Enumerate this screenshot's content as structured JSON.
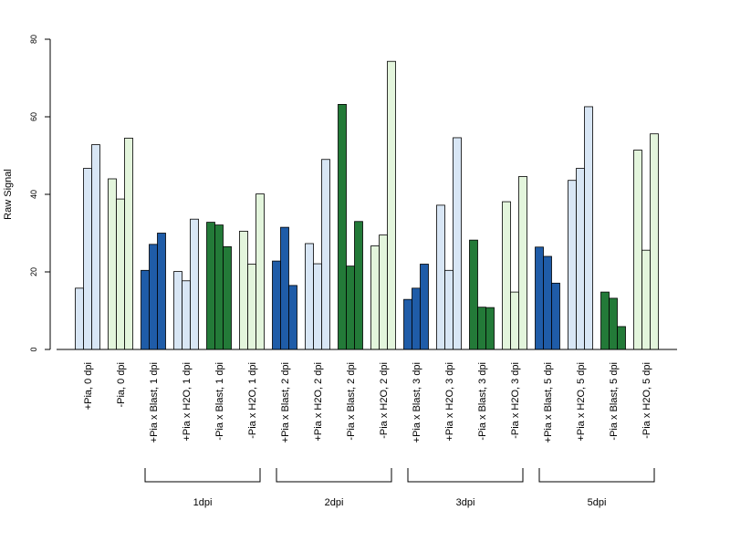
{
  "chart_data": {
    "type": "bar",
    "ylabel": "Raw Signal",
    "ylim": [
      0,
      80
    ],
    "yticks": [
      0,
      20,
      40,
      60,
      80
    ],
    "grid": false,
    "categories": [
      "+Pia, 0 dpi",
      "-Pia, 0 dpi",
      "+Pia x Blast, 1 dpi",
      "+Pia x H2O, 1 dpi",
      "-Pia x Blast, 1 dpi",
      "-Pia x H2O, 1 dpi",
      "+Pia x Blast, 2 dpi",
      "+Pia x H2O, 2 dpi",
      "-Pia x Blast, 2 dpi",
      "-Pia x H2O, 2 dpi",
      "+Pia x Blast, 3 dpi",
      "+Pia x H2O, 3 dpi",
      "-Pia x Blast, 3 dpi",
      "-Pia x H2O, 3 dpi",
      "+Pia x Blast, 5 dpi",
      "+Pia x H2O, 5 dpi",
      "-Pia x Blast, 5 dpi",
      "-Pia x H2O, 5 dpi"
    ],
    "replicate_values": [
      [
        15.8,
        46.7,
        52.8
      ],
      [
        44.0,
        38.8,
        54.5
      ],
      [
        20.4,
        27.1,
        30.0
      ],
      [
        20.1,
        17.7,
        33.6
      ],
      [
        32.8,
        32.1,
        26.5
      ],
      [
        30.5,
        22.0,
        40.1
      ],
      [
        22.8,
        31.5,
        16.5
      ],
      [
        27.3,
        22.1,
        49.0
      ],
      [
        63.2,
        21.5,
        33.0
      ],
      [
        26.7,
        29.5,
        74.3
      ],
      [
        12.9,
        15.8,
        22.0
      ],
      [
        37.2,
        20.4,
        54.6
      ],
      [
        28.2,
        10.9,
        10.8
      ],
      [
        38.1,
        14.8,
        44.6
      ],
      [
        26.4,
        24.0,
        17.1
      ],
      [
        43.6,
        46.7,
        62.6
      ],
      [
        14.8,
        13.2,
        5.9
      ],
      [
        51.4,
        25.6,
        55.6
      ]
    ],
    "bar_colors": [
      "#d8e6f5",
      "#e3f5dc",
      "#1f5ca8",
      "#d8e6f5",
      "#237a38",
      "#e3f5dc",
      "#1f5ca8",
      "#d8e6f5",
      "#237a38",
      "#e3f5dc",
      "#1f5ca8",
      "#d8e6f5",
      "#237a38",
      "#e3f5dc",
      "#1f5ca8",
      "#d8e6f5",
      "#237a38",
      "#e3f5dc"
    ],
    "groups": [
      {
        "label": "1dpi",
        "first": 2,
        "last": 5
      },
      {
        "label": "2dpi",
        "first": 6,
        "last": 9
      },
      {
        "label": "3dpi",
        "first": 10,
        "last": 13
      },
      {
        "label": "5dpi",
        "first": 14,
        "last": 17
      }
    ]
  }
}
